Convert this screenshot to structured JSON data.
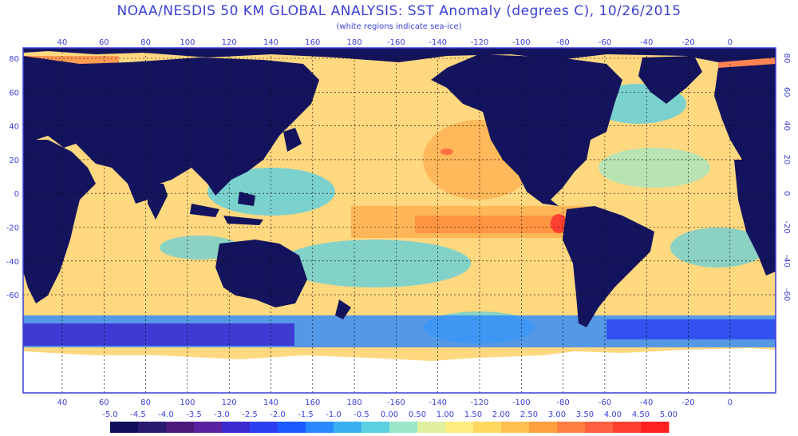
{
  "header": {
    "title": "NOAA/NESDIS 50 KM GLOBAL ANALYSIS: SST Anomaly (degrees C), 10/26/2015",
    "subtitle": "(white regions indicate sea-ice)"
  },
  "map": {
    "lon_ticks": [
      "40",
      "60",
      "80",
      "100",
      "120",
      "140",
      "160",
      "180",
      "-160",
      "-140",
      "-120",
      "-100",
      "-80",
      "-60",
      "-40",
      "-20",
      "0"
    ],
    "lat_ticks_left": [
      "80",
      "60",
      "40",
      "20",
      "0",
      "-20",
      "-40",
      "-60"
    ],
    "lat_ticks_right": [
      "80",
      "60",
      "40",
      "20",
      "0",
      "-20",
      "-40",
      "-60"
    ],
    "colors": {
      "land": "#14145e",
      "ice": "#ffffff",
      "frame": "#3a3fd6",
      "grid": "#000000"
    }
  },
  "colorbar": {
    "labels": [
      "-5.0",
      "-4.5",
      "-4.0",
      "-3.5",
      "-3.0",
      "-2.5",
      "-2.0",
      "-1.5",
      "-1.0",
      "-0.5",
      "0.00",
      "0.50",
      "1.00",
      "1.50",
      "2.00",
      "2.50",
      "3.00",
      "3.50",
      "4.00",
      "4.50",
      "5.00"
    ],
    "colors": [
      "#10105a",
      "#2a1a70",
      "#4b1a7c",
      "#5a22a0",
      "#3a2ad0",
      "#2a40f0",
      "#1a5cff",
      "#2a88ff",
      "#3ab0f0",
      "#5ad0e0",
      "#9ae8c8",
      "#e0f0a0",
      "#ffee80",
      "#ffd860",
      "#ffc050",
      "#ffa040",
      "#ff8040",
      "#ff6040",
      "#ff4030",
      "#ff2020"
    ]
  }
}
